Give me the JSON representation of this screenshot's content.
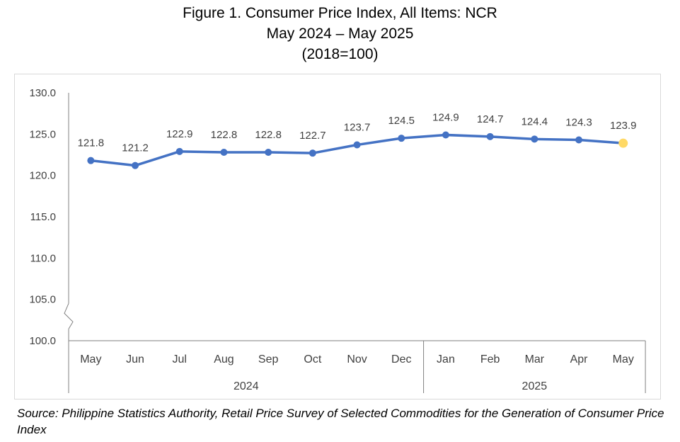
{
  "title": {
    "line1": "Figure 1. Consumer Price Index, All Items: NCR",
    "line2": "May 2024 – May 2025",
    "line3": "(2018=100)"
  },
  "source": "Source: Philippine Statistics Authority, Retail Price Survey of Selected Commodities for the Generation of Consumer Price Index",
  "chart_data": {
    "type": "line",
    "categories": [
      "May",
      "Jun",
      "Jul",
      "Aug",
      "Sep",
      "Oct",
      "Nov",
      "Dec",
      "Jan",
      "Feb",
      "Mar",
      "Apr",
      "May"
    ],
    "groups": [
      {
        "label": "2024",
        "count": 8
      },
      {
        "label": "2025",
        "count": 5
      }
    ],
    "series": [
      {
        "values": [
          121.8,
          121.2,
          122.9,
          122.8,
          122.8,
          122.7,
          123.7,
          124.5,
          124.9,
          124.7,
          124.4,
          124.3,
          123.9
        ],
        "labels": [
          "121.8",
          "121.2",
          "122.9",
          "122.8",
          "122.8",
          "122.7",
          "123.7",
          "124.5",
          "124.9",
          "124.7",
          "124.4",
          "124.3",
          "123.9"
        ]
      }
    ],
    "yticks": [
      "130.0",
      "125.0",
      "120.0",
      "115.0",
      "110.0",
      "105.0",
      "100.0"
    ],
    "ytick_values": [
      130,
      125,
      120,
      115,
      110,
      105,
      100
    ],
    "ylim": [
      100,
      130
    ],
    "axis_break": true,
    "grid": false,
    "colors": {
      "line": "#4472C4",
      "highlight_point": "#FFD966",
      "axis": "#7f7f7f",
      "label_text": "#404040"
    }
  }
}
